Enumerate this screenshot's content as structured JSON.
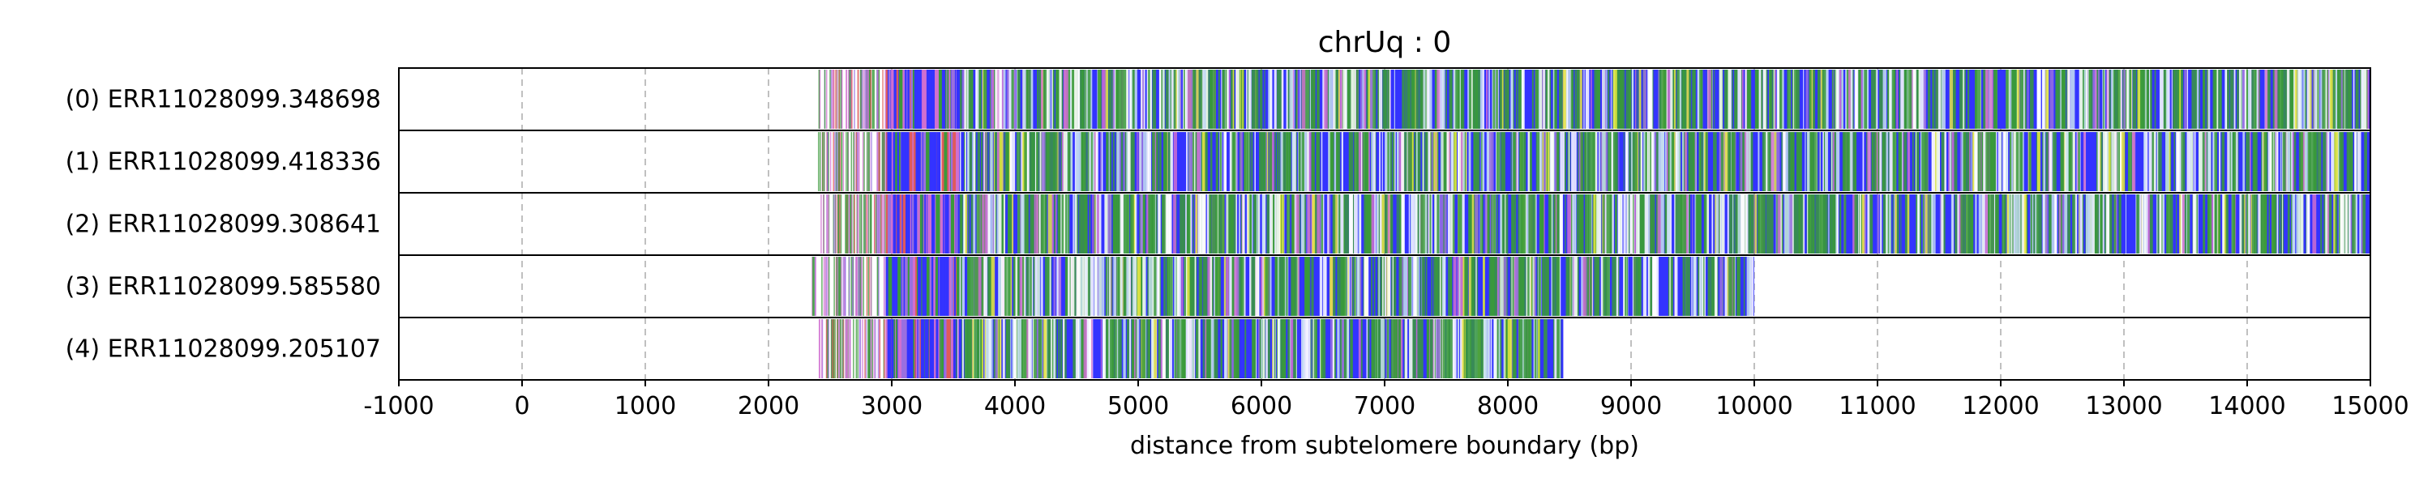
{
  "chart_data": {
    "type": "heatmap",
    "title": "chrUq : 0",
    "xlabel": "distance from subtelomere boundary (bp)",
    "xlim": [
      -1000,
      15000
    ],
    "xticks": [
      "-1000",
      "0",
      "1000",
      "2000",
      "3000",
      "4000",
      "5000",
      "6000",
      "7000",
      "8000",
      "9000",
      "10000",
      "11000",
      "12000",
      "13000",
      "14000",
      "15000"
    ],
    "grid": "vertical dashed",
    "colors": {
      "dense": "#3333ff",
      "green": "#3a9a3a",
      "pink": "#d070d0",
      "red": "#e05a5a",
      "light": "#c8e0f0",
      "yellow": "#e8e840",
      "purple": "#9a70e0"
    },
    "reads": [
      {
        "label": "(0) ERR11028099.348698",
        "start": 2400,
        "end": 15000
      },
      {
        "label": "(1) ERR11028099.418336",
        "start": 2400,
        "end": 15000
      },
      {
        "label": "(2) ERR11028099.308641",
        "start": 2400,
        "end": 15000
      },
      {
        "label": "(3) ERR11028099.585580",
        "start": 2350,
        "end": 10000
      },
      {
        "label": "(4) ERR11028099.205107",
        "start": 2400,
        "end": 8450
      }
    ]
  }
}
